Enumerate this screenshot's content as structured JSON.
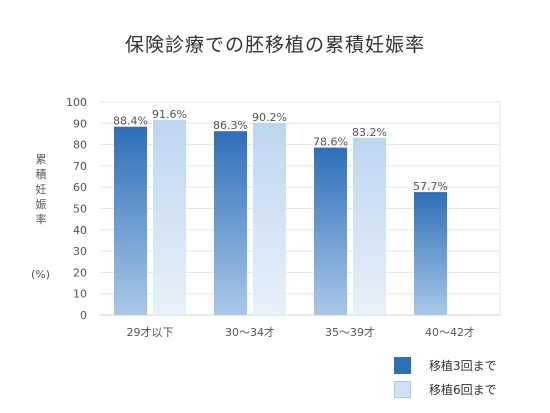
{
  "chart_data": {
    "type": "bar",
    "title": "保険診療での胚移植の累積妊娠率",
    "ylabel": "累積妊娠率",
    "yunit": "(%)",
    "categories": [
      "29才以下",
      "30〜34才",
      "35〜39才",
      "40〜42才"
    ],
    "series": [
      {
        "name": "移植3回まで",
        "values": [
          88.4,
          86.3,
          78.6,
          57.7
        ],
        "labels": [
          "88.4%",
          "86.3%",
          "78.6%",
          "57.7%"
        ]
      },
      {
        "name": "移植6回まで",
        "values": [
          91.6,
          90.2,
          83.2,
          null
        ],
        "labels": [
          "91.6%",
          "90.2%",
          "83.2%",
          ""
        ]
      }
    ],
    "ylim": [
      0,
      100
    ],
    "yticks": [
      0,
      10,
      20,
      30,
      40,
      50,
      60,
      70,
      80,
      90,
      100
    ],
    "grid": true,
    "legend_position": "bottom-right",
    "colors": {
      "series1_top": "#2e6fb8",
      "series1_bottom": "#a9c8e8",
      "series2_top": "#bcd6ef",
      "series2_bottom": "#e8f1fa",
      "grid": "#e6e6e6",
      "axis": "#cfcfcf",
      "text": "#555555"
    }
  }
}
